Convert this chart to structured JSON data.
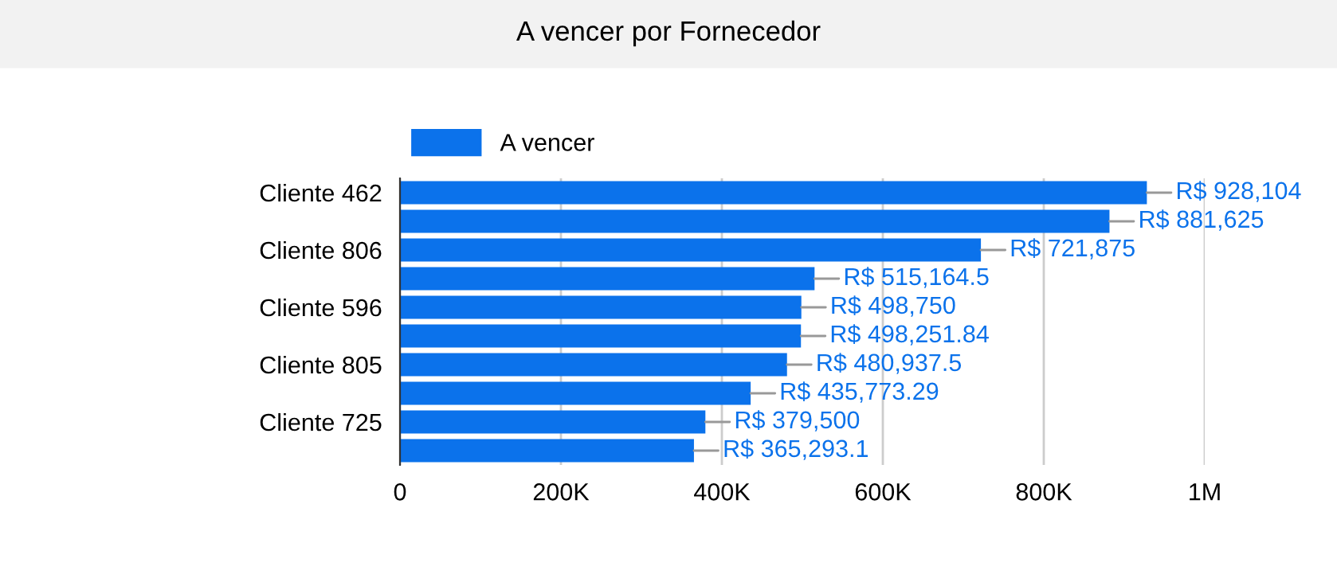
{
  "chart_data": {
    "type": "bar",
    "orientation": "horizontal",
    "title": "A vencer por Fornecedor",
    "categories": [
      "Cliente 462",
      null,
      "Cliente 806",
      null,
      "Cliente 596",
      null,
      "Cliente 805",
      null,
      "Cliente 725",
      null
    ],
    "series": [
      {
        "name": "A vencer",
        "color": "#0b72eb",
        "values": [
          928104,
          881625,
          721875,
          515164.5,
          498750,
          498251.84,
          480937.5,
          435773.29,
          379500,
          365293.1
        ],
        "value_labels": [
          "R$ 928,104",
          "R$ 881,625",
          "R$ 721,875",
          "R$ 515,164.5",
          "R$ 498,750",
          "R$ 498,251.84",
          "R$ 480,937.5",
          "R$ 435,773.29",
          "R$ 379,500",
          "R$ 365,293.1"
        ]
      }
    ],
    "xlim": [
      0,
      1000000
    ],
    "xticks": [
      {
        "value": 0,
        "label": "0"
      },
      {
        "value": 200000,
        "label": "200K"
      },
      {
        "value": 400000,
        "label": "400K"
      },
      {
        "value": 600000,
        "label": "600K"
      },
      {
        "value": 800000,
        "label": "800K"
      },
      {
        "value": 1000000,
        "label": "1M"
      }
    ],
    "grid": "x",
    "legend": "top left"
  }
}
